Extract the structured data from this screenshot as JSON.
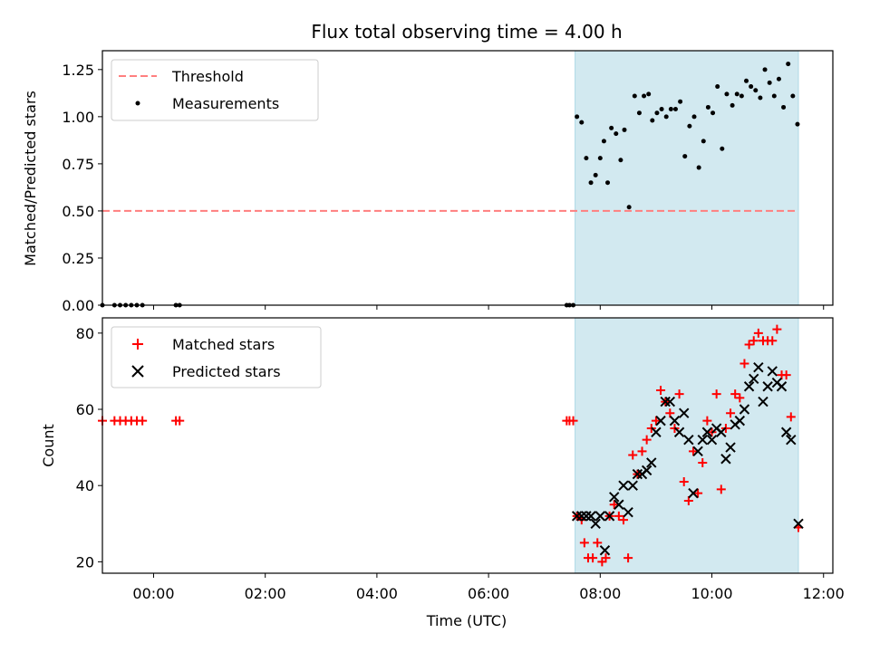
{
  "chart_data": [
    {
      "type": "scatter",
      "title": "Flux total observing time = 4.00 h",
      "xlabel": "",
      "ylabel": "Matched/Predicted stars",
      "xlim": [
        "-00:55",
        "12:10"
      ],
      "ylim": [
        0,
        1.35
      ],
      "yticks": [
        "0.00",
        "0.25",
        "0.50",
        "0.75",
        "1.00",
        "1.25"
      ],
      "xticks": [
        "00:00",
        "02:00",
        "04:00",
        "06:00",
        "08:00",
        "10:00",
        "12:00"
      ],
      "shaded_region": {
        "start": "07:33",
        "end": "11:33",
        "color": "#d2e9f0"
      },
      "grid": false,
      "legend_position": "top-left",
      "series": [
        {
          "name": "Threshold",
          "style": "dashed-line",
          "color": "#ff7f7f",
          "points": [
            [
              "-00:55",
              0.5
            ],
            [
              "11:33",
              0.5
            ]
          ]
        },
        {
          "name": "Measurements",
          "style": "dot",
          "color": "#000000",
          "points": [
            [
              "-00:55",
              0.0
            ],
            [
              "-00:42",
              0.0
            ],
            [
              "-00:36",
              0.0
            ],
            [
              "-00:30",
              0.0
            ],
            [
              "-00:24",
              0.0
            ],
            [
              "-00:18",
              0.0
            ],
            [
              "-00:12",
              0.0
            ],
            [
              "00:24",
              0.0
            ],
            [
              "00:28",
              0.0
            ],
            [
              "07:24",
              0.0
            ],
            [
              "07:27",
              0.0
            ],
            [
              "07:31",
              0.0
            ],
            [
              "07:35",
              1.0
            ],
            [
              "07:40",
              0.97
            ],
            [
              "07:45",
              0.78
            ],
            [
              "07:50",
              0.65
            ],
            [
              "07:55",
              0.69
            ],
            [
              "08:00",
              0.78
            ],
            [
              "08:04",
              0.87
            ],
            [
              "08:08",
              0.65
            ],
            [
              "08:12",
              0.94
            ],
            [
              "08:17",
              0.91
            ],
            [
              "08:22",
              0.77
            ],
            [
              "08:26",
              0.93
            ],
            [
              "08:31",
              0.52
            ],
            [
              "08:37",
              1.11
            ],
            [
              "08:42",
              1.02
            ],
            [
              "08:47",
              1.11
            ],
            [
              "08:52",
              1.12
            ],
            [
              "08:56",
              0.98
            ],
            [
              "09:01",
              1.02
            ],
            [
              "09:06",
              1.04
            ],
            [
              "09:11",
              1.0
            ],
            [
              "09:16",
              1.04
            ],
            [
              "09:21",
              1.04
            ],
            [
              "09:26",
              1.08
            ],
            [
              "09:31",
              0.79
            ],
            [
              "09:36",
              0.95
            ],
            [
              "09:41",
              1.0
            ],
            [
              "09:46",
              0.73
            ],
            [
              "09:51",
              0.87
            ],
            [
              "09:56",
              1.05
            ],
            [
              "10:01",
              1.02
            ],
            [
              "10:06",
              1.16
            ],
            [
              "10:11",
              0.83
            ],
            [
              "10:16",
              1.12
            ],
            [
              "10:22",
              1.06
            ],
            [
              "10:27",
              1.12
            ],
            [
              "10:32",
              1.11
            ],
            [
              "10:37",
              1.19
            ],
            [
              "10:42",
              1.16
            ],
            [
              "10:47",
              1.14
            ],
            [
              "10:52",
              1.1
            ],
            [
              "10:57",
              1.25
            ],
            [
              "11:02",
              1.18
            ],
            [
              "11:07",
              1.11
            ],
            [
              "11:12",
              1.2
            ],
            [
              "11:17",
              1.05
            ],
            [
              "11:22",
              1.28
            ],
            [
              "11:27",
              1.11
            ],
            [
              "11:32",
              0.96
            ]
          ]
        }
      ]
    },
    {
      "type": "scatter",
      "title": "",
      "xlabel": "Time (UTC)",
      "ylabel": "Count",
      "xlim": [
        "-00:55",
        "12:10"
      ],
      "ylim": [
        17,
        84
      ],
      "yticks": [
        "20",
        "40",
        "60",
        "80"
      ],
      "xticks": [
        "00:00",
        "02:00",
        "04:00",
        "06:00",
        "08:00",
        "10:00",
        "12:00"
      ],
      "shaded_region": {
        "start": "07:33",
        "end": "11:33",
        "color": "#d2e9f0"
      },
      "grid": false,
      "legend_position": "top-left",
      "series": [
        {
          "name": "Matched stars",
          "marker": "plus",
          "color": "#ff0000",
          "points": [
            [
              "-00:55",
              57
            ],
            [
              "-00:42",
              57
            ],
            [
              "-00:36",
              57
            ],
            [
              "-00:30",
              57
            ],
            [
              "-00:24",
              57
            ],
            [
              "-00:18",
              57
            ],
            [
              "-00:12",
              57
            ],
            [
              "00:24",
              57
            ],
            [
              "00:28",
              57
            ],
            [
              "07:24",
              57
            ],
            [
              "07:27",
              57
            ],
            [
              "07:31",
              57
            ],
            [
              "07:35",
              32
            ],
            [
              "07:40",
              31
            ],
            [
              "07:43",
              25
            ],
            [
              "07:47",
              21
            ],
            [
              "07:52",
              21
            ],
            [
              "07:57",
              25
            ],
            [
              "08:02",
              20
            ],
            [
              "08:06",
              21
            ],
            [
              "08:10",
              32
            ],
            [
              "08:15",
              35
            ],
            [
              "08:20",
              32
            ],
            [
              "08:25",
              31
            ],
            [
              "08:30",
              21
            ],
            [
              "08:35",
              48
            ],
            [
              "08:40",
              43
            ],
            [
              "08:45",
              49
            ],
            [
              "08:50",
              52
            ],
            [
              "08:55",
              55
            ],
            [
              "09:00",
              57
            ],
            [
              "09:05",
              65
            ],
            [
              "09:10",
              62
            ],
            [
              "09:15",
              59
            ],
            [
              "09:20",
              55
            ],
            [
              "09:25",
              64
            ],
            [
              "09:30",
              41
            ],
            [
              "09:35",
              36
            ],
            [
              "09:40",
              49
            ],
            [
              "09:45",
              38
            ],
            [
              "09:50",
              46
            ],
            [
              "09:55",
              57
            ],
            [
              "10:00",
              54
            ],
            [
              "10:05",
              64
            ],
            [
              "10:10",
              39
            ],
            [
              "10:15",
              55
            ],
            [
              "10:20",
              59
            ],
            [
              "10:25",
              64
            ],
            [
              "10:30",
              63
            ],
            [
              "10:35",
              72
            ],
            [
              "10:40",
              77
            ],
            [
              "10:45",
              78
            ],
            [
              "10:50",
              80
            ],
            [
              "10:55",
              78
            ],
            [
              "11:00",
              78
            ],
            [
              "11:05",
              78
            ],
            [
              "11:10",
              81
            ],
            [
              "11:15",
              69
            ],
            [
              "11:20",
              69
            ],
            [
              "11:25",
              58
            ],
            [
              "11:33",
              29
            ]
          ]
        },
        {
          "name": "Predicted stars",
          "marker": "cross",
          "color": "#000000",
          "points": [
            [
              "07:35",
              32
            ],
            [
              "07:40",
              32
            ],
            [
              "07:45",
              32
            ],
            [
              "07:50",
              32
            ],
            [
              "07:55",
              30
            ],
            [
              "08:00",
              32
            ],
            [
              "08:05",
              23
            ],
            [
              "08:10",
              32
            ],
            [
              "08:15",
              37
            ],
            [
              "08:20",
              35
            ],
            [
              "08:25",
              40
            ],
            [
              "08:30",
              33
            ],
            [
              "08:35",
              40
            ],
            [
              "08:40",
              43
            ],
            [
              "08:45",
              43
            ],
            [
              "08:50",
              44
            ],
            [
              "08:55",
              46
            ],
            [
              "09:00",
              54
            ],
            [
              "09:05",
              57
            ],
            [
              "09:10",
              62
            ],
            [
              "09:15",
              62
            ],
            [
              "09:20",
              57
            ],
            [
              "09:25",
              54
            ],
            [
              "09:30",
              59
            ],
            [
              "09:35",
              52
            ],
            [
              "09:40",
              38
            ],
            [
              "09:45",
              49
            ],
            [
              "09:50",
              52
            ],
            [
              "09:55",
              54
            ],
            [
              "10:00",
              52
            ],
            [
              "10:05",
              55
            ],
            [
              "10:10",
              54
            ],
            [
              "10:15",
              47
            ],
            [
              "10:20",
              50
            ],
            [
              "10:25",
              56
            ],
            [
              "10:30",
              57
            ],
            [
              "10:35",
              60
            ],
            [
              "10:40",
              66
            ],
            [
              "10:45",
              68
            ],
            [
              "10:50",
              71
            ],
            [
              "10:55",
              62
            ],
            [
              "11:00",
              66
            ],
            [
              "11:05",
              70
            ],
            [
              "11:10",
              67
            ],
            [
              "11:15",
              66
            ],
            [
              "11:20",
              54
            ],
            [
              "11:25",
              52
            ],
            [
              "11:33",
              30
            ]
          ]
        }
      ]
    }
  ]
}
